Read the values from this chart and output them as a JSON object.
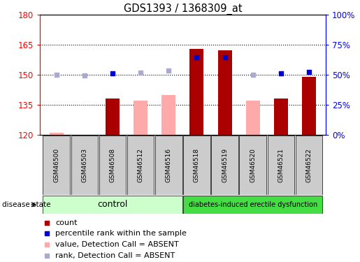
{
  "title": "GDS1393 / 1368309_at",
  "samples": [
    "GSM46500",
    "GSM46503",
    "GSM46508",
    "GSM46512",
    "GSM46516",
    "GSM46518",
    "GSM46519",
    "GSM46520",
    "GSM46521",
    "GSM46522"
  ],
  "count_values": [
    null,
    null,
    138,
    null,
    null,
    163,
    162,
    null,
    138,
    149
  ],
  "count_absent": [
    121,
    120,
    null,
    null,
    null,
    null,
    null,
    null,
    null,
    null
  ],
  "value_absent": [
    null,
    null,
    null,
    137,
    140,
    null,
    null,
    137,
    null,
    null
  ],
  "percentile_present": [
    null,
    null,
    150.5,
    null,
    null,
    158.5,
    158.5,
    null,
    150.5,
    151.5
  ],
  "percentile_absent": [
    150.0,
    149.5,
    null,
    151.0,
    152.0,
    null,
    null,
    150.0,
    null,
    null
  ],
  "ylim": [
    120,
    180
  ],
  "yticks_left": [
    120,
    135,
    150,
    165,
    180
  ],
  "yticks_right": [
    0,
    25,
    50,
    75,
    100
  ],
  "right_ylim": [
    0,
    100
  ],
  "bar_color_present": "#aa0000",
  "bar_color_absent": "#ffaaaa",
  "dot_color_present": "#0000cc",
  "dot_color_absent": "#aaaacc",
  "control_color": "#ccffcc",
  "disease_color": "#44dd44",
  "sample_bg": "#cccccc",
  "dotted_lines": [
    135,
    150,
    165
  ],
  "bar_width": 0.5,
  "dot_size": 18
}
